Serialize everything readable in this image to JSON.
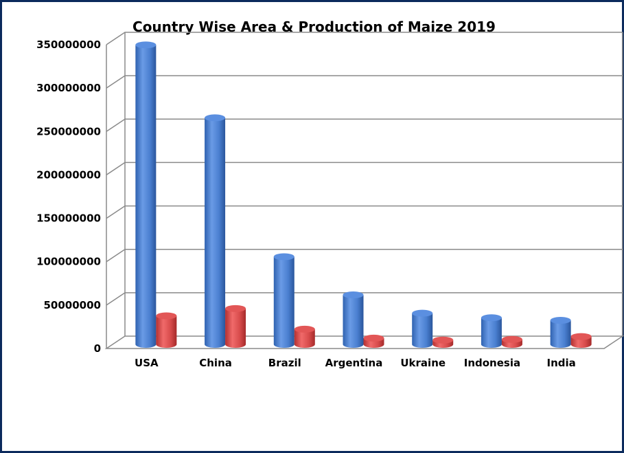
{
  "chart_data": {
    "type": "bar",
    "title": "Country Wise Area & Production of Maize 2019",
    "categories": [
      "USA",
      "China",
      "Brazil",
      "Argentina",
      "Ukraine",
      "Indonesia",
      "India"
    ],
    "series": [
      {
        "values": [
          345000000,
          261000000,
          101000000,
          57000000,
          35900000,
          30700000,
          27700000
        ],
        "color": "#4f86d6"
      },
      {
        "values": [
          32900000,
          41300000,
          17500000,
          7200000,
          4980000,
          5700000,
          9030000
        ],
        "color": "#d94a4a"
      }
    ],
    "yticks": [
      "0",
      "50000000",
      "100000000",
      "150000000",
      "200000000",
      "250000000",
      "300000000",
      "350000000"
    ],
    "ylim": [
      0,
      350000000
    ],
    "grid": true,
    "legend": "none"
  }
}
